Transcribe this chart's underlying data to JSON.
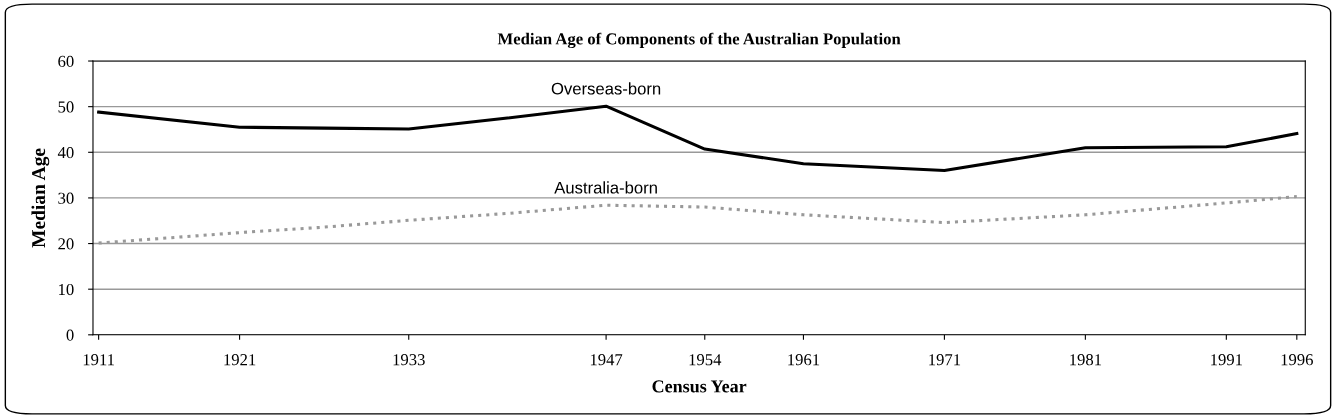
{
  "chart_data": {
    "type": "line",
    "title": "Median Age of Components of the Australian Population",
    "xlabel": "Census Year",
    "ylabel": "Median Age",
    "x": [
      1911,
      1921,
      1927,
      1933,
      1940,
      1947,
      1954,
      1961,
      1971,
      1981,
      1991,
      1996
    ],
    "series": [
      {
        "name": "Overseas-born",
        "color": "#000000",
        "line_style": "solid",
        "values": [
          48.8,
          45.5,
          45.3,
          45.1,
          47.5,
          50.1,
          40.7,
          37.5,
          36.0,
          41.0,
          41.2,
          44.1
        ]
      },
      {
        "name": "Australia-born",
        "color": "#999999",
        "line_style": "dotted",
        "values": [
          20.1,
          22.4,
          23.6,
          25.1,
          26.6,
          28.4,
          28.0,
          26.3,
          24.6,
          26.3,
          28.9,
          30.3
        ]
      }
    ],
    "xlim": [
      1910.6,
      1996.6
    ],
    "xticks": [
      1911,
      1921,
      1933,
      1947,
      1954,
      1961,
      1971,
      1981,
      1991,
      1996
    ],
    "ylim": [
      0,
      60
    ],
    "yticks": [
      0,
      10,
      20,
      30,
      40,
      50,
      60
    ],
    "grid": "y",
    "legend": false,
    "marker": "none"
  }
}
